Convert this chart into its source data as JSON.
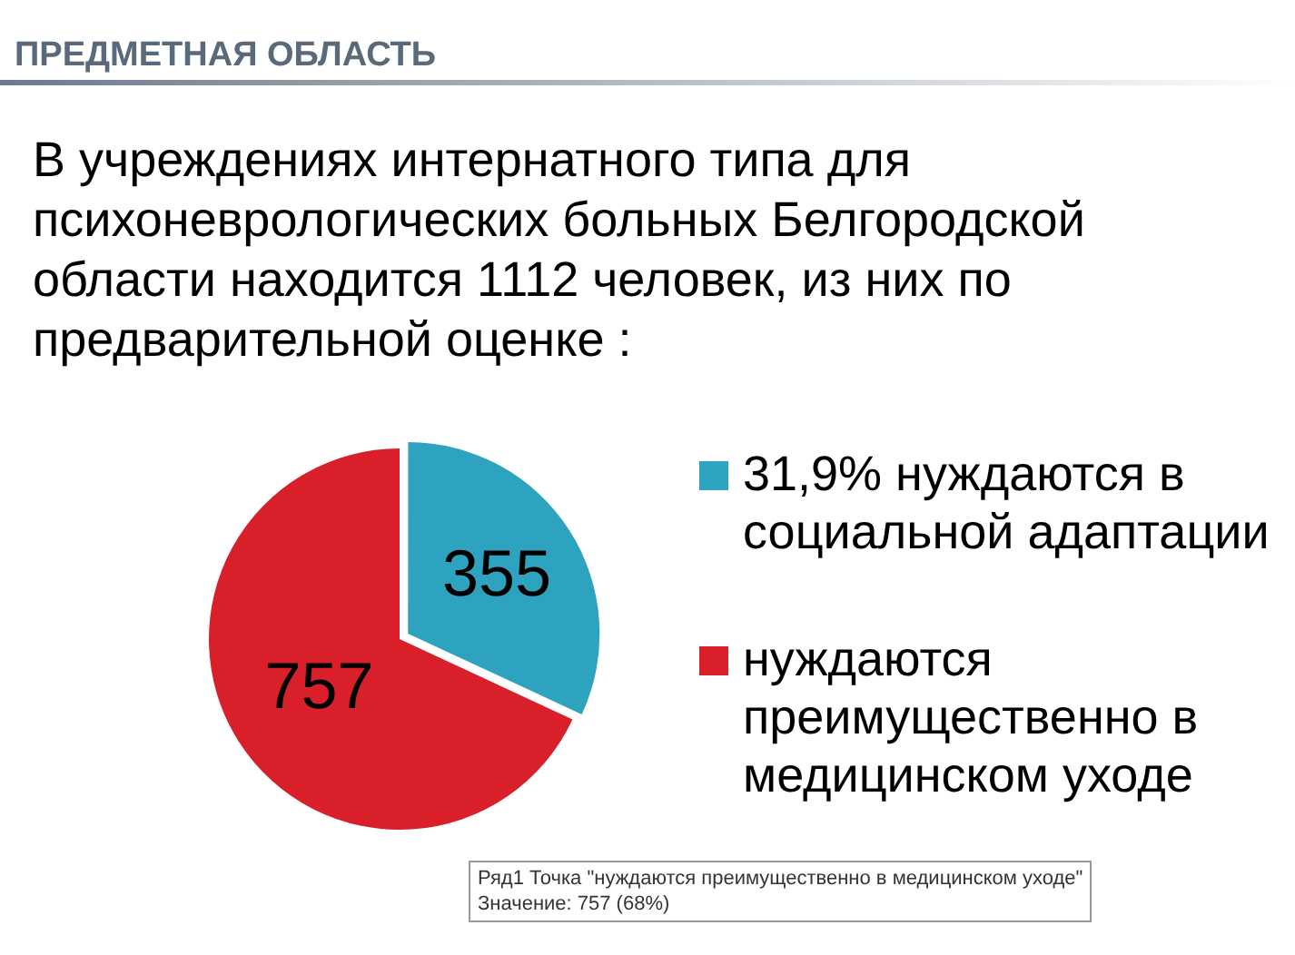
{
  "chart_data": {
    "type": "pie",
    "title": "ПРЕДМЕТНАЯ ОБЛАСТЬ",
    "subtitle": "В учреждениях интернатного типа для психоневрологических больных Белгородской области находится 1112 человек, из них по предварительной оценке :",
    "categories": [
      "31,9% нуждаются в социальной адаптации",
      "нуждаются преимущественно в медицинском уходе"
    ],
    "values": [
      355,
      757
    ],
    "colors": [
      "#2ea3c0",
      "#d9202a"
    ],
    "data_labels": true,
    "legend": "right",
    "annotations": [
      "Ряд1 Точка \"нуждаются преимущественно в медицинском уходе\"",
      "Значение: 757 (68%)"
    ]
  }
}
